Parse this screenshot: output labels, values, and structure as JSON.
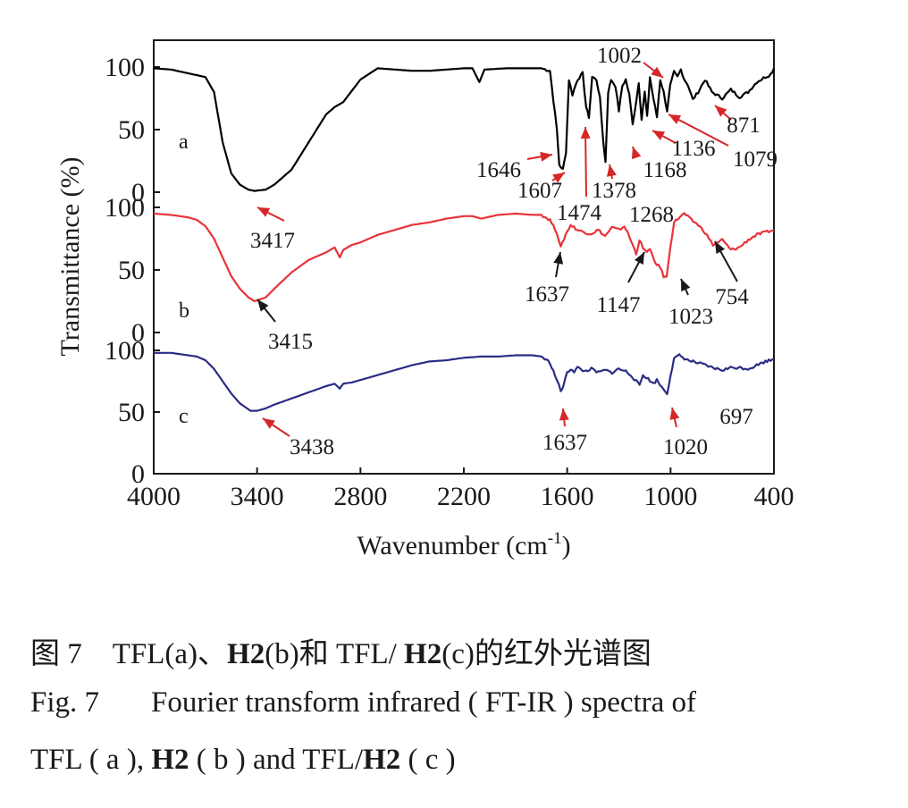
{
  "chart_data": {
    "type": "line",
    "xlabel": "Wavenumber (cm",
    "xlabel_sup": "-1",
    "xlabel_close": ")",
    "ylabel": "Transmittance (%)",
    "x_reversed": true,
    "xlim": [
      4000,
      400
    ],
    "x_ticks": [
      4000,
      3400,
      2800,
      2200,
      1600,
      1000,
      400
    ],
    "x_tick_labels": [
      "4000",
      "3400",
      "2800",
      "2200",
      "1600",
      "1000",
      "400"
    ],
    "grid": false,
    "panels": [
      {
        "letter": "a",
        "color": "#000000",
        "ylim": [
          0,
          100
        ],
        "y_tick_labels": [
          "100",
          "50",
          "0"
        ],
        "points": [
          [
            4000,
            99
          ],
          [
            3900,
            98
          ],
          [
            3800,
            95
          ],
          [
            3700,
            92
          ],
          [
            3650,
            80
          ],
          [
            3600,
            40
          ],
          [
            3550,
            15
          ],
          [
            3500,
            6
          ],
          [
            3450,
            2
          ],
          [
            3417,
            1
          ],
          [
            3350,
            2
          ],
          [
            3300,
            6
          ],
          [
            3200,
            18
          ],
          [
            3100,
            40
          ],
          [
            3000,
            62
          ],
          [
            2950,
            68
          ],
          [
            2900,
            72
          ],
          [
            2800,
            90
          ],
          [
            2700,
            99
          ],
          [
            2600,
            98
          ],
          [
            2500,
            97
          ],
          [
            2400,
            97
          ],
          [
            2300,
            98
          ],
          [
            2200,
            99
          ],
          [
            2150,
            99
          ],
          [
            2110,
            88
          ],
          [
            2080,
            98
          ],
          [
            1950,
            99
          ],
          [
            1850,
            99
          ],
          [
            1750,
            99
          ],
          [
            1700,
            97
          ],
          [
            1660,
            50
          ],
          [
            1646,
            22
          ],
          [
            1625,
            18
          ],
          [
            1607,
            32
          ],
          [
            1590,
            90
          ],
          [
            1570,
            78
          ],
          [
            1540,
            90
          ],
          [
            1510,
            95
          ],
          [
            1490,
            68
          ],
          [
            1474,
            60
          ],
          [
            1455,
            92
          ],
          [
            1430,
            90
          ],
          [
            1410,
            75
          ],
          [
            1390,
            40
          ],
          [
            1378,
            24
          ],
          [
            1362,
            80
          ],
          [
            1345,
            90
          ],
          [
            1320,
            85
          ],
          [
            1300,
            65
          ],
          [
            1280,
            85
          ],
          [
            1260,
            90
          ],
          [
            1240,
            78
          ],
          [
            1220,
            55
          ],
          [
            1200,
            72
          ],
          [
            1185,
            88
          ],
          [
            1168,
            58
          ],
          [
            1150,
            80
          ],
          [
            1136,
            60
          ],
          [
            1120,
            92
          ],
          [
            1100,
            75
          ],
          [
            1079,
            60
          ],
          [
            1060,
            90
          ],
          [
            1040,
            80
          ],
          [
            1020,
            65
          ],
          [
            1002,
            85
          ],
          [
            980,
            96
          ],
          [
            960,
            92
          ],
          [
            940,
            98
          ],
          [
            920,
            90
          ],
          [
            900,
            86
          ],
          [
            871,
            74
          ],
          [
            840,
            80
          ],
          [
            800,
            90
          ],
          [
            760,
            80
          ],
          [
            700,
            75
          ],
          [
            650,
            82
          ],
          [
            600,
            76
          ],
          [
            550,
            80
          ],
          [
            500,
            88
          ],
          [
            450,
            92
          ],
          [
            420,
            94
          ],
          [
            400,
            99
          ]
        ],
        "annotations": [
          {
            "label": "3417",
            "x": 3417,
            "color": "#d62728"
          },
          {
            "label": "1646",
            "x": 1646,
            "color": "#d62728"
          },
          {
            "label": "1607",
            "x": 1607,
            "color": "#d62728"
          },
          {
            "label": "1474",
            "x": 1474,
            "color": "#d62728"
          },
          {
            "label": "1378",
            "x": 1378,
            "color": "#d62728"
          },
          {
            "label": "1168",
            "x": 1168,
            "color": "#d62728"
          },
          {
            "label": "1136",
            "x": 1136,
            "color": "#d62728"
          },
          {
            "label": "1079",
            "x": 1079,
            "color": "#d62728"
          },
          {
            "label": "1002",
            "x": 1002,
            "color": "#d62728"
          },
          {
            "label": "871",
            "x": 871,
            "color": "#d62728"
          }
        ]
      },
      {
        "letter": "b",
        "color": "#e8333a",
        "ylim": [
          0,
          100
        ],
        "y_tick_labels": [
          "100",
          "50",
          "0"
        ],
        "points": [
          [
            4000,
            95
          ],
          [
            3900,
            94
          ],
          [
            3800,
            92
          ],
          [
            3750,
            90
          ],
          [
            3700,
            85
          ],
          [
            3650,
            75
          ],
          [
            3600,
            60
          ],
          [
            3550,
            45
          ],
          [
            3500,
            35
          ],
          [
            3450,
            28
          ],
          [
            3415,
            25
          ],
          [
            3350,
            28
          ],
          [
            3300,
            35
          ],
          [
            3200,
            48
          ],
          [
            3100,
            58
          ],
          [
            3000,
            64
          ],
          [
            2950,
            68
          ],
          [
            2920,
            60
          ],
          [
            2900,
            66
          ],
          [
            2850,
            70
          ],
          [
            2800,
            72
          ],
          [
            2700,
            78
          ],
          [
            2600,
            82
          ],
          [
            2500,
            86
          ],
          [
            2400,
            88
          ],
          [
            2300,
            91
          ],
          [
            2200,
            93
          ],
          [
            2150,
            93
          ],
          [
            2100,
            91
          ],
          [
            2000,
            94
          ],
          [
            1900,
            95
          ],
          [
            1800,
            94
          ],
          [
            1750,
            94
          ],
          [
            1700,
            90
          ],
          [
            1660,
            80
          ],
          [
            1637,
            68
          ],
          [
            1610,
            78
          ],
          [
            1580,
            86
          ],
          [
            1540,
            82
          ],
          [
            1500,
            80
          ],
          [
            1460,
            79
          ],
          [
            1420,
            82
          ],
          [
            1380,
            77
          ],
          [
            1340,
            84
          ],
          [
            1300,
            82
          ],
          [
            1268,
            85
          ],
          [
            1250,
            80
          ],
          [
            1220,
            70
          ],
          [
            1200,
            63
          ],
          [
            1180,
            74
          ],
          [
            1160,
            67
          ],
          [
            1147,
            65
          ],
          [
            1120,
            66
          ],
          [
            1090,
            56
          ],
          [
            1060,
            52
          ],
          [
            1040,
            45
          ],
          [
            1023,
            44
          ],
          [
            1000,
            70
          ],
          [
            980,
            88
          ],
          [
            950,
            92
          ],
          [
            920,
            95
          ],
          [
            880,
            90
          ],
          [
            840,
            86
          ],
          [
            800,
            80
          ],
          [
            754,
            70
          ],
          [
            700,
            74
          ],
          [
            650,
            66
          ],
          [
            600,
            68
          ],
          [
            550,
            74
          ],
          [
            500,
            78
          ],
          [
            450,
            80
          ],
          [
            400,
            82
          ]
        ],
        "annotations": [
          {
            "label": "3415",
            "x": 3415,
            "color": "#1a1a1a"
          },
          {
            "label": "1637",
            "x": 1637,
            "color": "#1a1a1a"
          },
          {
            "label": "1268",
            "x": 1268,
            "color": "#1a1a1a"
          },
          {
            "label": "1147",
            "x": 1147,
            "color": "#1a1a1a"
          },
          {
            "label": "1023",
            "x": 1023,
            "color": "#1a1a1a"
          },
          {
            "label": "754",
            "x": 754,
            "color": "#1a1a1a"
          }
        ]
      },
      {
        "letter": "c",
        "color": "#2b2d84",
        "ylim": [
          0,
          100
        ],
        "y_tick_labels": [
          "100",
          "50",
          "0"
        ],
        "points": [
          [
            4000,
            98
          ],
          [
            3900,
            98
          ],
          [
            3800,
            96
          ],
          [
            3750,
            95
          ],
          [
            3700,
            92
          ],
          [
            3650,
            85
          ],
          [
            3600,
            75
          ],
          [
            3550,
            65
          ],
          [
            3500,
            57
          ],
          [
            3438,
            51
          ],
          [
            3400,
            51
          ],
          [
            3350,
            53
          ],
          [
            3300,
            56
          ],
          [
            3200,
            61
          ],
          [
            3100,
            66
          ],
          [
            3000,
            71
          ],
          [
            2950,
            73
          ],
          [
            2920,
            69
          ],
          [
            2900,
            73
          ],
          [
            2850,
            74
          ],
          [
            2800,
            76
          ],
          [
            2700,
            80
          ],
          [
            2600,
            84
          ],
          [
            2500,
            88
          ],
          [
            2400,
            91
          ],
          [
            2300,
            92
          ],
          [
            2200,
            94
          ],
          [
            2100,
            95
          ],
          [
            2000,
            95
          ],
          [
            1900,
            96
          ],
          [
            1800,
            96
          ],
          [
            1750,
            95
          ],
          [
            1700,
            90
          ],
          [
            1660,
            76
          ],
          [
            1637,
            67
          ],
          [
            1620,
            72
          ],
          [
            1600,
            82
          ],
          [
            1580,
            85
          ],
          [
            1560,
            83
          ],
          [
            1540,
            86
          ],
          [
            1500,
            83
          ],
          [
            1460,
            85
          ],
          [
            1420,
            82
          ],
          [
            1380,
            84
          ],
          [
            1340,
            82
          ],
          [
            1300,
            85
          ],
          [
            1260,
            83
          ],
          [
            1230,
            80
          ],
          [
            1200,
            75
          ],
          [
            1180,
            72
          ],
          [
            1160,
            80
          ],
          [
            1140,
            78
          ],
          [
            1100,
            73
          ],
          [
            1080,
            76
          ],
          [
            1050,
            70
          ],
          [
            1030,
            67
          ],
          [
            1020,
            65
          ],
          [
            1000,
            80
          ],
          [
            980,
            93
          ],
          [
            950,
            96
          ],
          [
            900,
            92
          ],
          [
            850,
            90
          ],
          [
            800,
            88
          ],
          [
            760,
            86
          ],
          [
            700,
            84
          ],
          [
            650,
            86
          ],
          [
            600,
            86
          ],
          [
            550,
            85
          ],
          [
            500,
            88
          ],
          [
            450,
            91
          ],
          [
            400,
            93
          ]
        ],
        "annotations": [
          {
            "label": "3438",
            "x": 3438,
            "color": "#d62728"
          },
          {
            "label": "1637",
            "x": 1637,
            "color": "#d62728"
          },
          {
            "label": "1020",
            "x": 1020,
            "color": "#d62728"
          },
          {
            "label": "697",
            "x": 697,
            "color": "#1a1a1a"
          }
        ]
      }
    ]
  },
  "caption": {
    "cn": {
      "prefix": "图 7",
      "part1": "TFL(a)、",
      "bold1": "H2",
      "part2": "(b)和 TFL/ ",
      "bold2": "H2",
      "part3": "(c)的红外光谱图"
    },
    "en1": {
      "prefix": "Fig. 7",
      "text": "Fourier transform infrared ( FT-IR ) spectra of"
    },
    "en2": {
      "part1": "TFL ( a ), ",
      "bold1": "H2",
      "part2": " ( b ) and TFL/",
      "bold2": "H2",
      "part3": " ( c )"
    }
  }
}
